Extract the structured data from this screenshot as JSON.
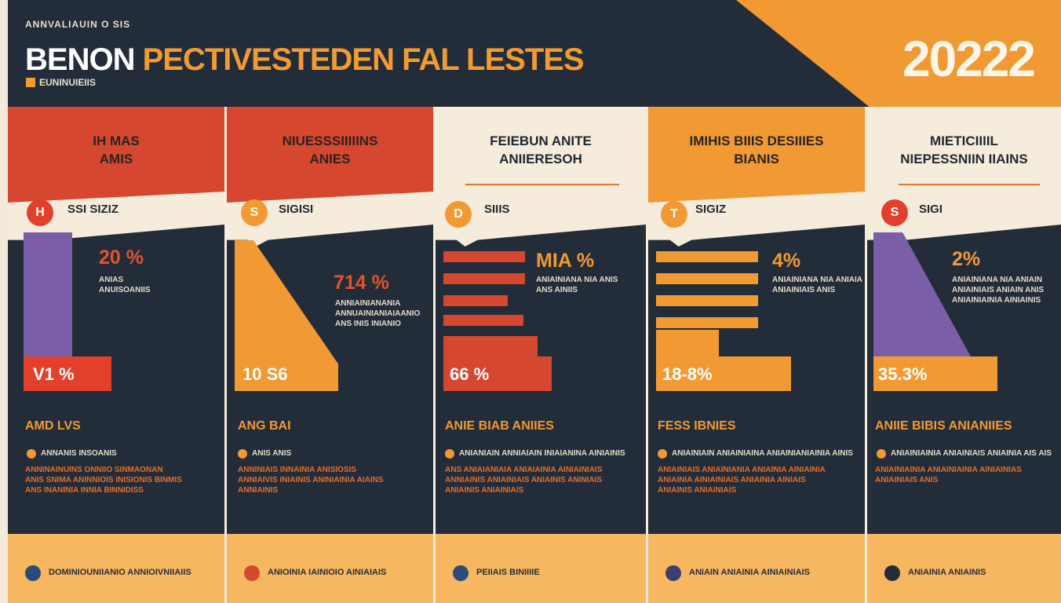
{
  "header": {
    "kicker": "ANNVALIAUIN  O SIS",
    "title_white": "BENON",
    "title_orange": "PECTIVESTEDEN FAL LESTES",
    "subtitle": "EUNINUIEIIS",
    "year": "20222"
  },
  "columns": [
    {
      "header": "IH MAS\nAMIS",
      "header_bg": "#d5472f",
      "header_color": "#2a2320",
      "badge": "H",
      "badge_color": "#e2402b",
      "badge_label": "SSI SIZIZ",
      "pct": "20 %",
      "pct_color": "#e3542b",
      "desc": "ANIAS\nANUISOANIIS",
      "bar_value": "V1 %",
      "section": "AMD LVS",
      "bullet": "ANNANIS INSOANIS",
      "para": "ANNINAINUINS ONNIIO SINMAONAN\nANIS SNIMA ANINNIOIS INISIONIS BINMIS\nANS INANINIA INNIA BINNIDISS",
      "footer_text": "DOMINIOUNIIANIO ANNIOIVNIIAIIS",
      "footer_dot": "#2c4a7a"
    },
    {
      "header": "NIUESSSIIIIINS\nANIES",
      "header_bg": "#d5472f",
      "header_color": "#2a2320",
      "badge": "S",
      "badge_color": "#f19a33",
      "badge_label": "SIGISI",
      "pct": "714 %",
      "pct_color": "#e3542b",
      "desc": "ANNIAINIANANIA\nANNUAINIANIAIAANIO\nANS INIS INIANIO",
      "bar_value": "10 S6",
      "section": "ANG BAI",
      "bullet": "ANIS ANIS",
      "para": "ANNINIAIS INNAINIA ANISIOSIS\nANNIAIVIS INIAINIS ANINIAINIA AIAINS\nANNIAINIS",
      "footer_text": "ANIOINIA IAINIOIO AINIAIAIS",
      "footer_dot": "#d5472f"
    },
    {
      "header": "FEIEBUN ANITE\nANIIERESOH",
      "header_bg": "#f6ecdc",
      "header_color": "#1f2733",
      "badge": "D",
      "badge_color": "#f19a33",
      "badge_label": "SIIIS",
      "pct": "MIA %",
      "pct_color": "#f19a33",
      "desc": "ANIAINIANA NIA ANIS\nANS AINIIS",
      "bar_value": "66 %",
      "section": "ANIE BIAB ANIIES",
      "bullet": "ANIANIAIN ANNIAIAIN INIAIANINA AINIAINIS",
      "para": "ANS ANIAIANIAIA ANIAIAINIA AINIAINIAIS\nANNIAINIS ANIAINIAIS ANIAINIS ANINIAIS\nANIAINIS ANIAINIAIS",
      "footer_text": "PEIIAIS BINIIIIE",
      "footer_dot": "#2c4a7a"
    },
    {
      "header": "IMIHIS BIIIS DESIIIES\nBIANIS",
      "header_bg": "#f19a33",
      "header_color": "#2a2320",
      "badge": "T",
      "badge_color": "#f19a33",
      "badge_label": "SIGIZ",
      "pct": "4%",
      "pct_color": "#f19a33",
      "desc": "ANIAINIANA NIA ANIAIA\nANIAINIAIS ANIS",
      "bar_value": "18-8%",
      "section": "FESS IBNIES",
      "bullet": "ANIAINIAIN ANIAINIAINA ANIAINIANIAINIA AINIS",
      "para": "ANIAINIAIS ANIAINIANIA ANIAINIA AINIAINIA\nANIAINIA AINIAINIAIS ANIAINIA AINIAIS\nANIAINIS ANIAINIAIS",
      "footer_text": "ANIAIN ANIAINIA AINIAINIAIS",
      "footer_dot": "#3b3f6e"
    },
    {
      "header": "MIETICIIIIL\nNIEPESSNIIN IIAINS",
      "header_bg": "#f6ecdc",
      "header_color": "#1f2733",
      "badge": "S",
      "badge_color": "#e2402b",
      "badge_label": "SIGI",
      "pct": "2%",
      "pct_color": "#f19a33",
      "desc": "ANIAINIANA NIA ANIAIN\nANIAINIAIS ANIAIN ANIS\nANIAINIAINIA AINIAINIS",
      "bar_value": "35.3%",
      "section": "ANIIE BIBIS ANIANIIES",
      "bullet": "ANIAINIAINIA ANIAINIAIS ANIAINIA AIS AIS",
      "para": "ANIAINIAINIA ANIAINIAINIA AINIAINIAS\nANIAINIAIS ANIS",
      "footer_text": "ANIAINIA ANIAINIS",
      "footer_dot": "#232c39"
    }
  ],
  "colors": {
    "navy": "#232c39",
    "orange": "#f19a33",
    "red": "#d5472f",
    "purple": "#7a5fa8",
    "cream": "#f6ecdc",
    "footer": "#f7b660"
  }
}
